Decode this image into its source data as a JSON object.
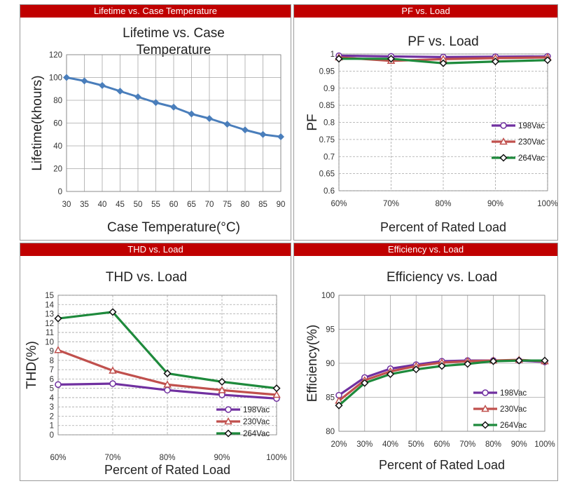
{
  "chart_data": [
    {
      "type": "line",
      "header": "Lifetime vs. Case Temperature",
      "title_lines": [
        "Lifetime vs. Case",
        "Temperature"
      ],
      "xlabel": "Case Temperature(°C)",
      "ylabel": "Lifetime(khours)",
      "categories": [
        "30",
        "35",
        "40",
        "45",
        "50",
        "55",
        "60",
        "65",
        "70",
        "75",
        "80",
        "85",
        "90"
      ],
      "ylim": [
        0,
        120
      ],
      "yticks": [
        "0",
        "20",
        "40",
        "60",
        "80",
        "100",
        "120"
      ],
      "grid": true,
      "series": [
        {
          "name": "Lifetime",
          "values": [
            100,
            97,
            93,
            88,
            83,
            78,
            74,
            68,
            64,
            59,
            54,
            50,
            48
          ]
        }
      ]
    },
    {
      "type": "line",
      "header": "PF vs. Load",
      "title_lines": [
        "PF vs. Load"
      ],
      "xlabel": "Percent of Rated Load",
      "ylabel": "PF",
      "categories": [
        "60%",
        "70%",
        "80%",
        "90%",
        "100%"
      ],
      "ylim": [
        0.6,
        1.0
      ],
      "yticks": [
        "0.6",
        "0.65",
        "0.7",
        "0.75",
        "0.8",
        "0.85",
        "0.9",
        "0.95",
        "1"
      ],
      "grid": true,
      "legend_position": "right",
      "series": [
        {
          "name": "198Vac",
          "values": [
            0.995,
            0.993,
            0.991,
            0.992,
            0.993
          ]
        },
        {
          "name": "230Vac",
          "values": [
            0.99,
            0.98,
            0.985,
            0.988,
            0.99
          ]
        },
        {
          "name": "264Vac",
          "values": [
            0.986,
            0.986,
            0.973,
            0.978,
            0.982
          ]
        }
      ]
    },
    {
      "type": "line",
      "header": "THD vs. Load",
      "title_lines": [
        "THD vs. Load"
      ],
      "xlabel": "Percent of Rated Load",
      "ylabel": "THD(%)",
      "categories": [
        "60%",
        "70%",
        "80%",
        "90%",
        "100%"
      ],
      "ylim": [
        0,
        15
      ],
      "yticks": [
        "0",
        "1",
        "2",
        "3",
        "4",
        "5",
        "6",
        "7",
        "8",
        "9",
        "10",
        "11",
        "12",
        "13",
        "14",
        "15"
      ],
      "grid": true,
      "legend_position": "bottom-right",
      "series": [
        {
          "name": "198Vac",
          "values": [
            5.4,
            5.5,
            4.8,
            4.3,
            3.9
          ]
        },
        {
          "name": "230Vac",
          "values": [
            9.1,
            6.9,
            5.4,
            4.8,
            4.3
          ]
        },
        {
          "name": "264Vac",
          "values": [
            12.5,
            13.2,
            6.6,
            5.7,
            5.0
          ]
        }
      ]
    },
    {
      "type": "line",
      "header": "Efficiency vs. Load",
      "title_lines": [
        "Efficiency vs. Load"
      ],
      "xlabel": "Percent of Rated Load",
      "ylabel": "Efficiency(%)",
      "categories": [
        "20%",
        "30%",
        "40%",
        "50%",
        "60%",
        "70%",
        "80%",
        "90%",
        "100%"
      ],
      "ylim": [
        80,
        100
      ],
      "yticks": [
        "80",
        "85",
        "90",
        "95",
        "100"
      ],
      "grid": true,
      "legend_position": "bottom-right",
      "series": [
        {
          "name": "198Vac",
          "values": [
            85.3,
            87.9,
            89.2,
            89.8,
            90.3,
            90.4,
            90.4,
            90.4,
            90.2
          ]
        },
        {
          "name": "230Vac",
          "values": [
            84.5,
            87.5,
            88.8,
            89.6,
            90.1,
            90.3,
            90.4,
            90.5,
            90.3
          ]
        },
        {
          "name": "264Vac",
          "values": [
            83.8,
            87.1,
            88.4,
            89.1,
            89.6,
            89.9,
            90.3,
            90.4,
            90.4
          ]
        }
      ]
    }
  ],
  "colors": {
    "header_bg": "#c00000",
    "lifetime_line": "#4a7ebb",
    "s198": "#7030a0",
    "s230": "#c0504d",
    "s264": "#1e8a3c",
    "grid": "#a6a6a6"
  }
}
